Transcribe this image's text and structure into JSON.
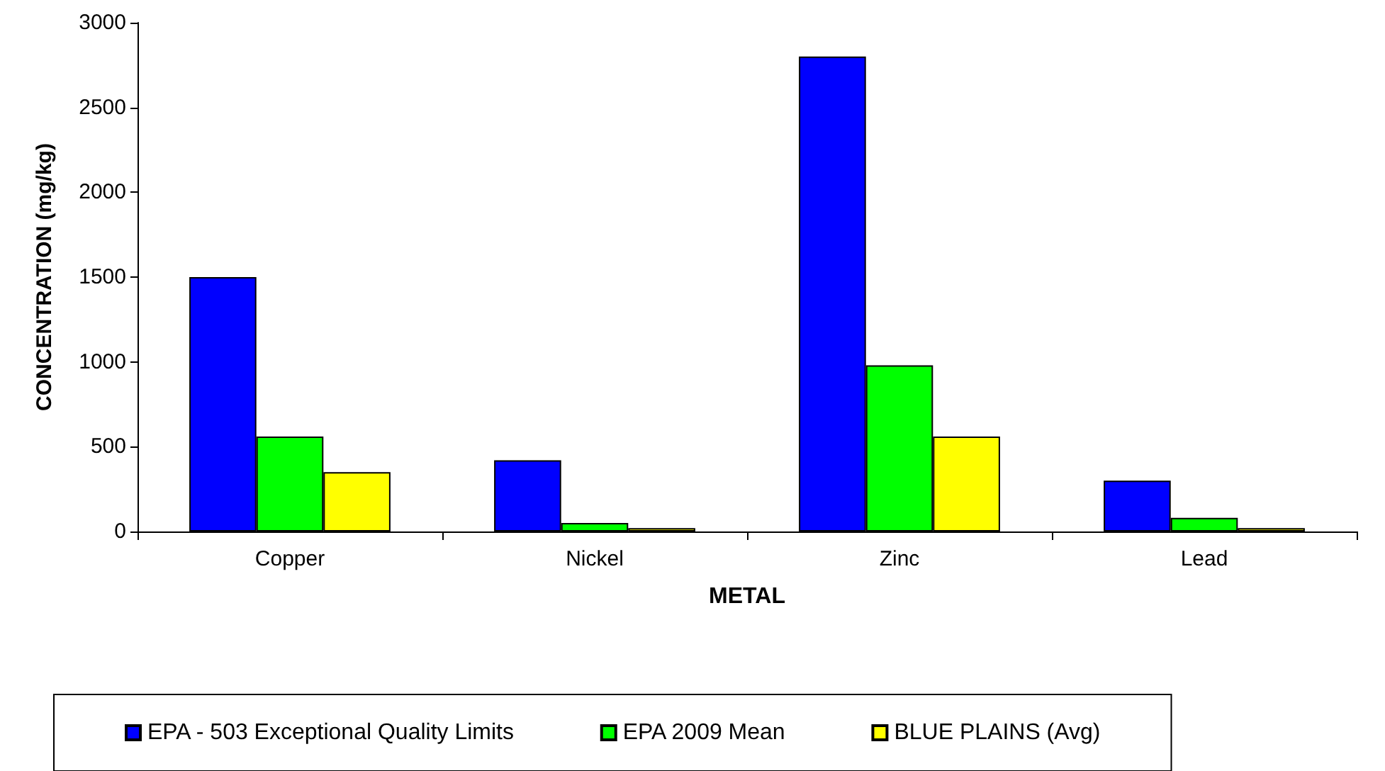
{
  "chart_data": {
    "type": "bar",
    "xlabel": "METAL",
    "ylabel": "CONCENTRATION (mg/kg)",
    "categories": [
      "Copper",
      "Nickel",
      "Zinc",
      "Lead"
    ],
    "series": [
      {
        "name": "EPA - 503 Exceptional Quality Limits",
        "color": "#0000ff",
        "values": [
          1500,
          420,
          2800,
          300
        ]
      },
      {
        "name": "EPA 2009 Mean",
        "color": "#00ff00",
        "values": [
          560,
          50,
          980,
          80
        ]
      },
      {
        "name": "BLUE PLAINS (Avg)",
        "color": "#ffff00",
        "values": [
          350,
          20,
          560,
          20
        ]
      }
    ],
    "ylim": [
      0,
      3000
    ],
    "yticks": [
      0,
      500,
      1000,
      1500,
      2000,
      2500,
      3000
    ],
    "grid": false,
    "legend": "bottom"
  }
}
